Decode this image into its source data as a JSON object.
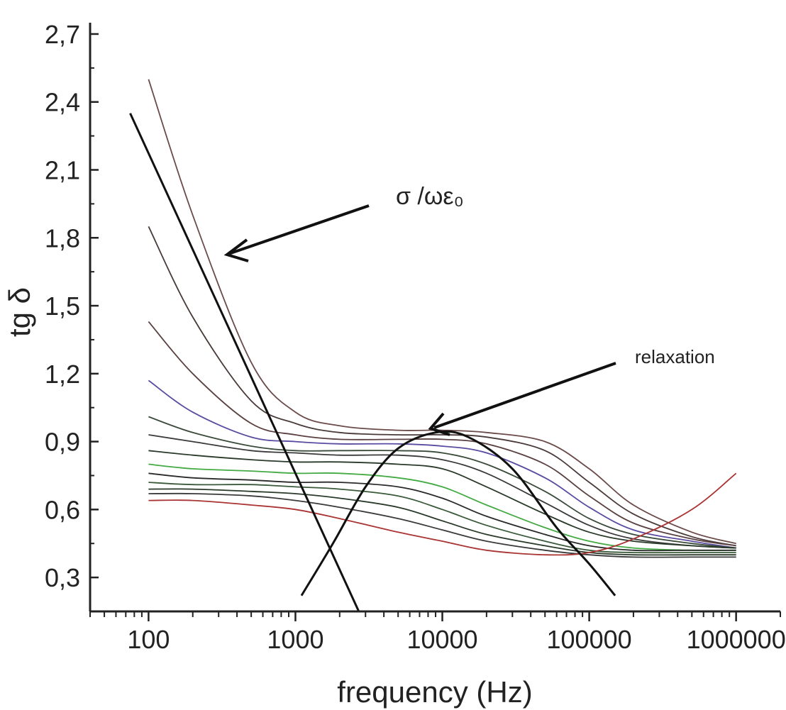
{
  "chart_data": {
    "type": "line",
    "title": "",
    "xlabel": "frequency (Hz)",
    "ylabel": "tg δ",
    "x_scale": "log",
    "xlim": [
      40,
      2000000
    ],
    "ylim": [
      0.15,
      2.75
    ],
    "x_ticks": [
      100,
      1000,
      10000,
      100000,
      1000000
    ],
    "x_tick_labels": [
      "100",
      "1000",
      "10000",
      "100000",
      "1000000"
    ],
    "y_ticks": [
      0.3,
      0.6,
      0.9,
      1.2,
      1.5,
      1.8,
      2.1,
      2.4,
      2.7
    ],
    "y_tick_labels": [
      "0,3",
      "0,6",
      "0,9",
      "1,2",
      "1,5",
      "1,8",
      "2,1",
      "2,4",
      "2,7"
    ],
    "grid": false,
    "legend": "none",
    "x": [
      100,
      200,
      500,
      1000,
      2000,
      5000,
      10000,
      20000,
      50000,
      100000,
      200000,
      500000,
      1000000
    ],
    "series": [
      {
        "color": "#6b4a4a",
        "values": [
          2.5,
          1.9,
          1.25,
          1.03,
          0.97,
          0.95,
          0.95,
          0.94,
          0.9,
          0.78,
          0.62,
          0.5,
          0.45
        ]
      },
      {
        "color": "#4a3a3a",
        "values": [
          1.85,
          1.45,
          1.08,
          0.98,
          0.94,
          0.93,
          0.93,
          0.92,
          0.86,
          0.72,
          0.58,
          0.48,
          0.44
        ]
      },
      {
        "color": "#5a4040",
        "values": [
          1.43,
          1.2,
          0.98,
          0.93,
          0.91,
          0.91,
          0.91,
          0.89,
          0.8,
          0.66,
          0.54,
          0.47,
          0.44
        ]
      },
      {
        "color": "#5a4aa0",
        "values": [
          1.17,
          1.03,
          0.92,
          0.9,
          0.89,
          0.89,
          0.88,
          0.85,
          0.74,
          0.61,
          0.51,
          0.46,
          0.43
        ]
      },
      {
        "color": "#3a4a3a",
        "values": [
          1.01,
          0.94,
          0.88,
          0.86,
          0.86,
          0.86,
          0.85,
          0.8,
          0.68,
          0.56,
          0.49,
          0.45,
          0.43
        ]
      },
      {
        "color": "#3a3a3a",
        "values": [
          0.93,
          0.9,
          0.86,
          0.85,
          0.84,
          0.84,
          0.82,
          0.76,
          0.63,
          0.53,
          0.47,
          0.44,
          0.43
        ]
      },
      {
        "color": "#2a3a2a",
        "values": [
          0.86,
          0.84,
          0.82,
          0.81,
          0.81,
          0.8,
          0.78,
          0.7,
          0.58,
          0.5,
          0.46,
          0.44,
          0.43
        ]
      },
      {
        "color": "#44aa44",
        "values": [
          0.8,
          0.78,
          0.77,
          0.76,
          0.76,
          0.74,
          0.7,
          0.62,
          0.52,
          0.46,
          0.43,
          0.42,
          0.42
        ]
      },
      {
        "color": "#2a2a2a",
        "values": [
          0.76,
          0.74,
          0.73,
          0.72,
          0.72,
          0.7,
          0.65,
          0.57,
          0.49,
          0.44,
          0.42,
          0.42,
          0.42
        ]
      },
      {
        "color": "#3a5a3a",
        "values": [
          0.72,
          0.71,
          0.71,
          0.7,
          0.69,
          0.66,
          0.6,
          0.53,
          0.46,
          0.42,
          0.41,
          0.41,
          0.41
        ]
      },
      {
        "color": "#2a3a2a",
        "values": [
          0.69,
          0.69,
          0.68,
          0.67,
          0.65,
          0.61,
          0.55,
          0.49,
          0.44,
          0.41,
          0.4,
          0.4,
          0.4
        ]
      },
      {
        "color": "#3a3a3a",
        "values": [
          0.67,
          0.67,
          0.66,
          0.64,
          0.61,
          0.56,
          0.51,
          0.46,
          0.42,
          0.4,
          0.39,
          0.39,
          0.39
        ]
      },
      {
        "color": "#aa3333",
        "values": [
          0.64,
          0.64,
          0.62,
          0.6,
          0.56,
          0.5,
          0.46,
          0.42,
          0.4,
          0.41,
          0.47,
          0.6,
          0.76
        ]
      }
    ],
    "annotations": {
      "conduction_label": "σ /ωε₀",
      "relaxation_label": "relaxation",
      "conduction_line": {
        "x": [
          75,
          2700
        ],
        "y": [
          2.35,
          0.15
        ]
      },
      "relaxation_curve": {
        "x": [
          1100,
          1800,
          3000,
          5000,
          9000,
          15000,
          30000,
          60000,
          100000,
          150000
        ],
        "y": [
          0.22,
          0.45,
          0.7,
          0.87,
          0.94,
          0.92,
          0.78,
          0.52,
          0.36,
          0.22
        ]
      }
    },
    "colors": {
      "axis": "#222222",
      "annotation": "#111111"
    }
  }
}
